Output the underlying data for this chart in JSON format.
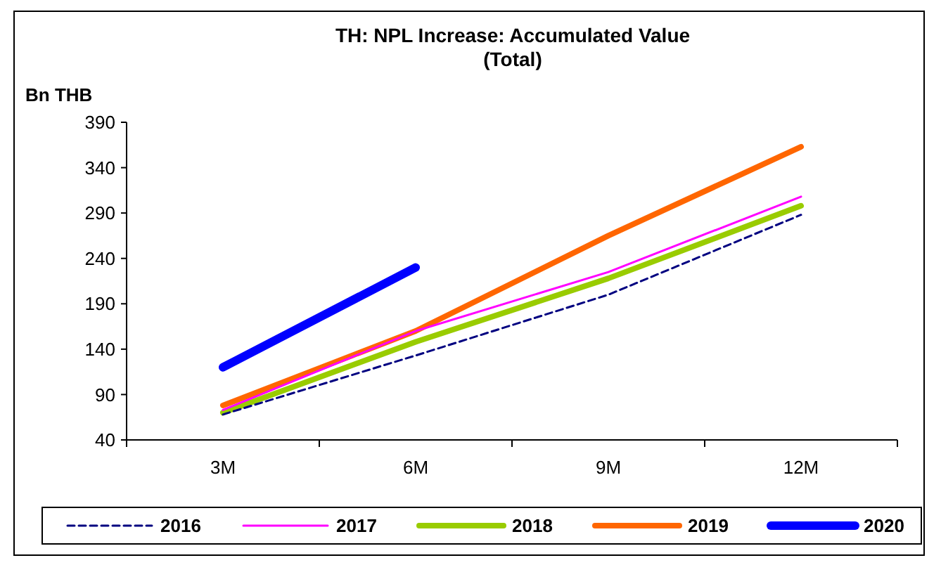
{
  "chart_data": {
    "type": "line",
    "title": "TH: NPL Increase: Accumulated Value (Total)",
    "ylabel": "Bn THB",
    "categories": [
      "3M",
      "6M",
      "9M",
      "12M"
    ],
    "series": [
      {
        "name": "2016",
        "color": "#000080",
        "values": [
          68,
          133,
          200,
          288
        ],
        "line_style": "dashed"
      },
      {
        "name": "2017",
        "color": "#ff00ff",
        "values": [
          73,
          160,
          225,
          308
        ],
        "line_style": "solid"
      },
      {
        "name": "2018",
        "color": "#99cc00",
        "values": [
          70,
          148,
          218,
          298
        ],
        "line_style": "solid"
      },
      {
        "name": "2019",
        "color": "#ff6600",
        "values": [
          78,
          160,
          265,
          363
        ],
        "line_style": "solid"
      },
      {
        "name": "2020",
        "color": "#0000ff",
        "values": [
          120,
          230,
          null,
          null
        ],
        "line_style": "solid"
      }
    ],
    "ylim": [
      40,
      390
    ],
    "yticks": [
      40,
      90,
      140,
      190,
      240,
      290,
      340,
      390
    ],
    "grid": false,
    "legend": "bottom",
    "marker": "none"
  }
}
